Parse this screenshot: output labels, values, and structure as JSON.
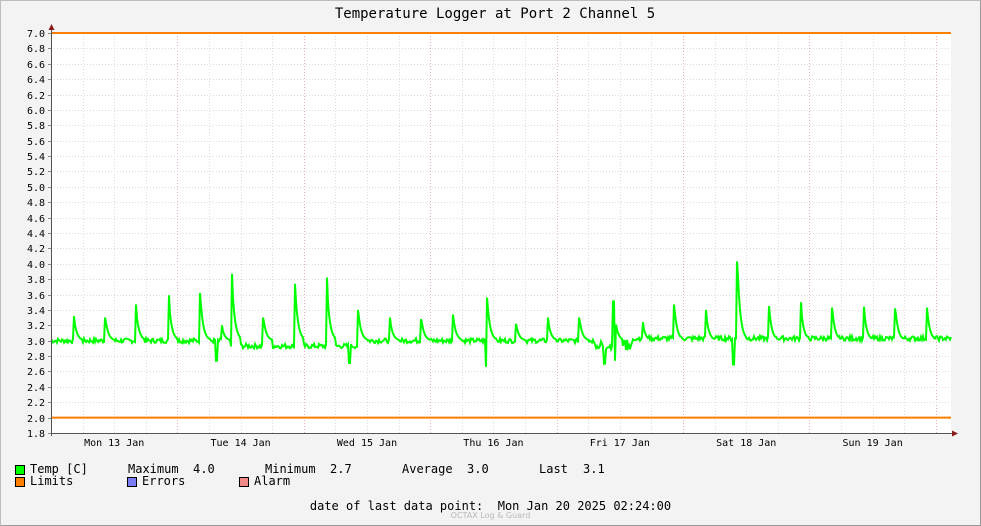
{
  "chart_data": {
    "type": "line",
    "title": "Temperature Logger at Port 2 Channel 5",
    "ylim": [
      1.8,
      7.0
    ],
    "yticks": [
      "1.8",
      "2.0",
      "2.2",
      "2.4",
      "2.6",
      "2.8",
      "3.0",
      "3.2",
      "3.4",
      "3.6",
      "3.8",
      "4.0",
      "4.2",
      "4.4",
      "4.6",
      "4.8",
      "5.0",
      "5.2",
      "5.4",
      "5.6",
      "5.8",
      "6.0",
      "6.2",
      "6.4",
      "6.6",
      "6.8",
      "7.0"
    ],
    "xlim": [
      0,
      7.12
    ],
    "xticks": [
      {
        "label": "Mon 13 Jan",
        "day": 0
      },
      {
        "label": "Tue 14 Jan",
        "day": 1
      },
      {
        "label": "Wed 15 Jan",
        "day": 2
      },
      {
        "label": "Thu 16 Jan",
        "day": 3
      },
      {
        "label": "Fri 17 Jan",
        "day": 4
      },
      {
        "label": "Sat 18 Jan",
        "day": 5
      },
      {
        "label": "Sun 19 Jan",
        "day": 6
      }
    ],
    "limits": {
      "upper": 7.0,
      "lower": 2.0
    },
    "baseline": 3.0,
    "spikes": [
      [
        0.18,
        3.32
      ],
      [
        0.43,
        3.3
      ],
      [
        0.67,
        3.47
      ],
      [
        0.93,
        3.59
      ],
      [
        1.18,
        3.62
      ],
      [
        1.35,
        3.2
      ],
      [
        1.43,
        3.87
      ],
      [
        1.68,
        3.3
      ],
      [
        1.93,
        3.74
      ],
      [
        2.18,
        3.82
      ],
      [
        2.43,
        3.4
      ],
      [
        2.68,
        3.3
      ],
      [
        2.93,
        3.28
      ],
      [
        3.18,
        3.34
      ],
      [
        3.45,
        3.56
      ],
      [
        3.68,
        3.22
      ],
      [
        3.93,
        3.3
      ],
      [
        4.18,
        3.3
      ],
      [
        4.45,
        3.51
      ],
      [
        4.68,
        3.24
      ],
      [
        4.93,
        3.47
      ],
      [
        5.18,
        3.4
      ],
      [
        5.43,
        4.03
      ],
      [
        5.68,
        3.45
      ],
      [
        5.93,
        3.5
      ],
      [
        6.18,
        3.43
      ],
      [
        6.43,
        3.44
      ],
      [
        6.68,
        3.42
      ],
      [
        6.93,
        3.43
      ]
    ],
    "dips": [
      [
        1.31,
        2.74
      ],
      [
        2.36,
        2.71
      ],
      [
        3.44,
        2.66
      ],
      [
        4.38,
        2.7
      ],
      [
        4.46,
        2.74
      ],
      [
        5.4,
        2.69
      ]
    ],
    "series": [
      {
        "name": "Temp [C]",
        "color": "#00ff00"
      },
      {
        "name": "Limits",
        "color": "#ff7f00"
      },
      {
        "name": "Errors",
        "color": "#7b7ef2"
      },
      {
        "name": "Alarm",
        "color": "#f28a8a"
      }
    ]
  },
  "legend": {
    "temp": "Temp [C]",
    "limits": "Limits",
    "errors": "Errors",
    "alarm": "Alarm",
    "max_label": "Maximum",
    "max_value": "4.0",
    "min_label": "Minimum",
    "min_value": "2.7",
    "avg_label": "Average",
    "avg_value": "3.0",
    "last_label": "Last",
    "last_value": "3.1"
  },
  "footer": {
    "date_label": "date of last data point:",
    "date_value": "Mon Jan 20 2025 02:24:00",
    "watermark": "OCTAX Log & Guard"
  },
  "colors": {
    "background": "#f3f3f3",
    "plot_bg": "#ffffff",
    "grid": "#dcdcdc",
    "temp": "#00ff00",
    "limits": "#ff7f00",
    "errors": "#7b7ef2",
    "alarm": "#f28a8a",
    "axis_arrow": "#8b1a1a"
  }
}
